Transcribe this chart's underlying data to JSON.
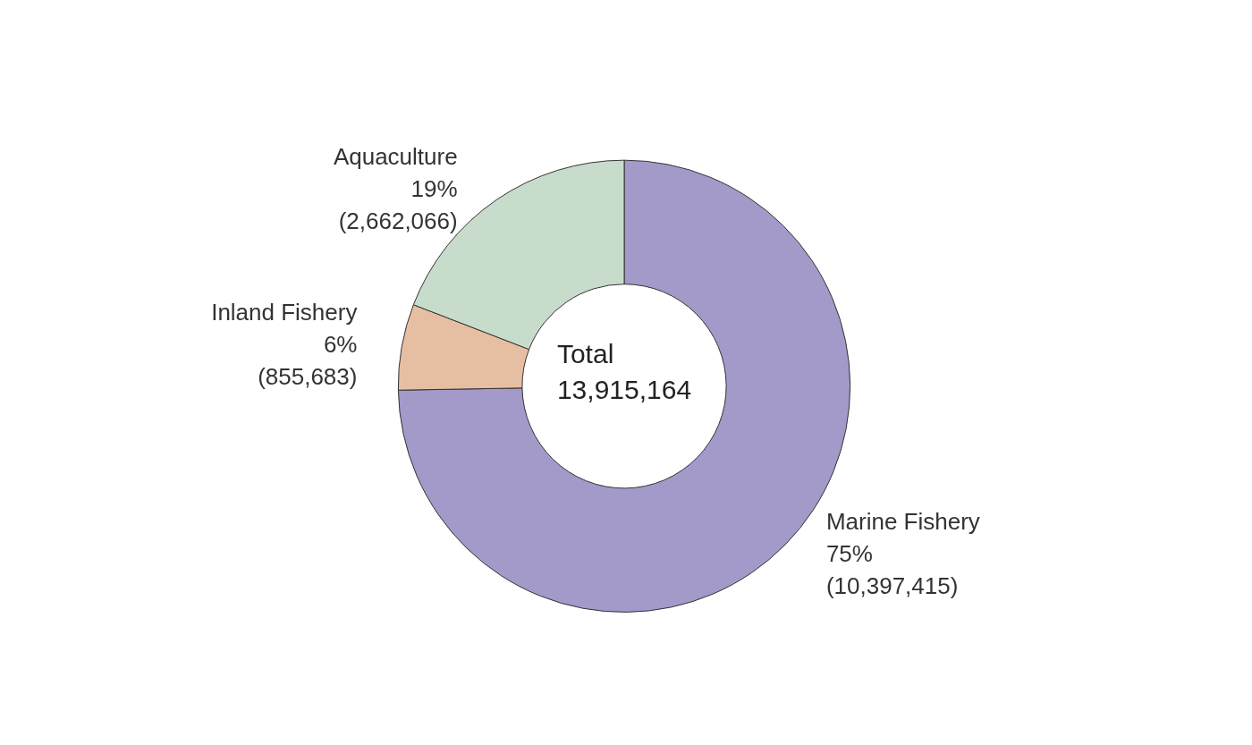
{
  "chart_data": {
    "type": "donut",
    "categories": [
      "Marine Fishery",
      "Inland Fishery",
      "Aquaculture"
    ],
    "values": [
      10397415,
      855683,
      2662066
    ],
    "colors": [
      "#a39ac9",
      "#e6bfa3",
      "#c8dccb"
    ],
    "value_labels": [
      "75%\n(10,397,415)",
      "6%\n(855,683)",
      "19%\n(2,662,066)"
    ],
    "annotations": [
      "Total\n13,915,164"
    ]
  }
}
